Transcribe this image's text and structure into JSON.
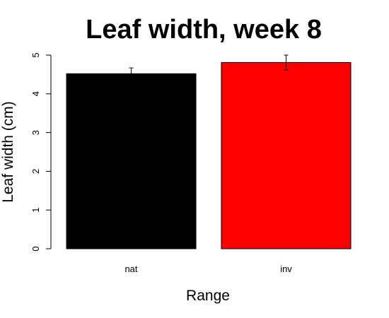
{
  "chart_data": {
    "type": "bar",
    "title": "Leaf width, week 8",
    "xlabel": "Range",
    "ylabel": "Leaf width (cm)",
    "categories": [
      "nat",
      "inv"
    ],
    "values": [
      4.52,
      4.81
    ],
    "error_low": [
      4.37,
      4.62
    ],
    "error_high": [
      4.67,
      5.0
    ],
    "colors": [
      "#000000",
      "#ff0000"
    ],
    "ylim": [
      0,
      5
    ],
    "yticks": [
      "0",
      "1",
      "2",
      "3",
      "4",
      "5"
    ],
    "grid": false,
    "legend": "none"
  }
}
